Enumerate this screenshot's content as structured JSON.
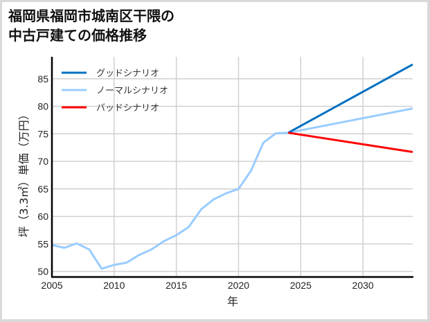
{
  "chart_data": {
    "type": "line",
    "title": "福岡県福岡市城南区干隈の中古戸建ての価格推移",
    "title_lines": [
      "福岡県福岡市城南区干隈の",
      "中古戸建ての価格推移"
    ],
    "xlabel": "年",
    "ylabel": "坪（3.3㎡）単価（万円）",
    "xlim": [
      2005,
      2034
    ],
    "ylim": [
      49,
      89
    ],
    "xticks": [
      2005,
      2010,
      2015,
      2020,
      2025,
      2030
    ],
    "yticks": [
      50,
      55,
      60,
      65,
      70,
      75,
      80,
      85
    ],
    "grid": true,
    "legend_position": "upper left",
    "series": [
      {
        "name": "グッドシナリオ",
        "color": "#0070c0",
        "x": [
          2024,
          2034
        ],
        "values": [
          75.2,
          87.6
        ]
      },
      {
        "name": "ノーマルシナリオ",
        "color": "#99ccff",
        "x": [
          2005,
          2006,
          2007,
          2008,
          2009,
          2010,
          2011,
          2012,
          2013,
          2014,
          2015,
          2016,
          2017,
          2018,
          2019,
          2020,
          2021,
          2022,
          2023,
          2024,
          2034
        ],
        "values": [
          54.8,
          54.3,
          55.1,
          54.0,
          50.5,
          51.2,
          51.6,
          53.0,
          54.0,
          55.5,
          56.6,
          58.1,
          61.3,
          63.1,
          64.2,
          65.0,
          68.3,
          73.4,
          75.1,
          75.2,
          79.6
        ]
      },
      {
        "name": "バッドシナリオ",
        "color": "#ff0000",
        "x": [
          2024,
          2034
        ],
        "values": [
          75.2,
          71.7
        ]
      }
    ]
  }
}
